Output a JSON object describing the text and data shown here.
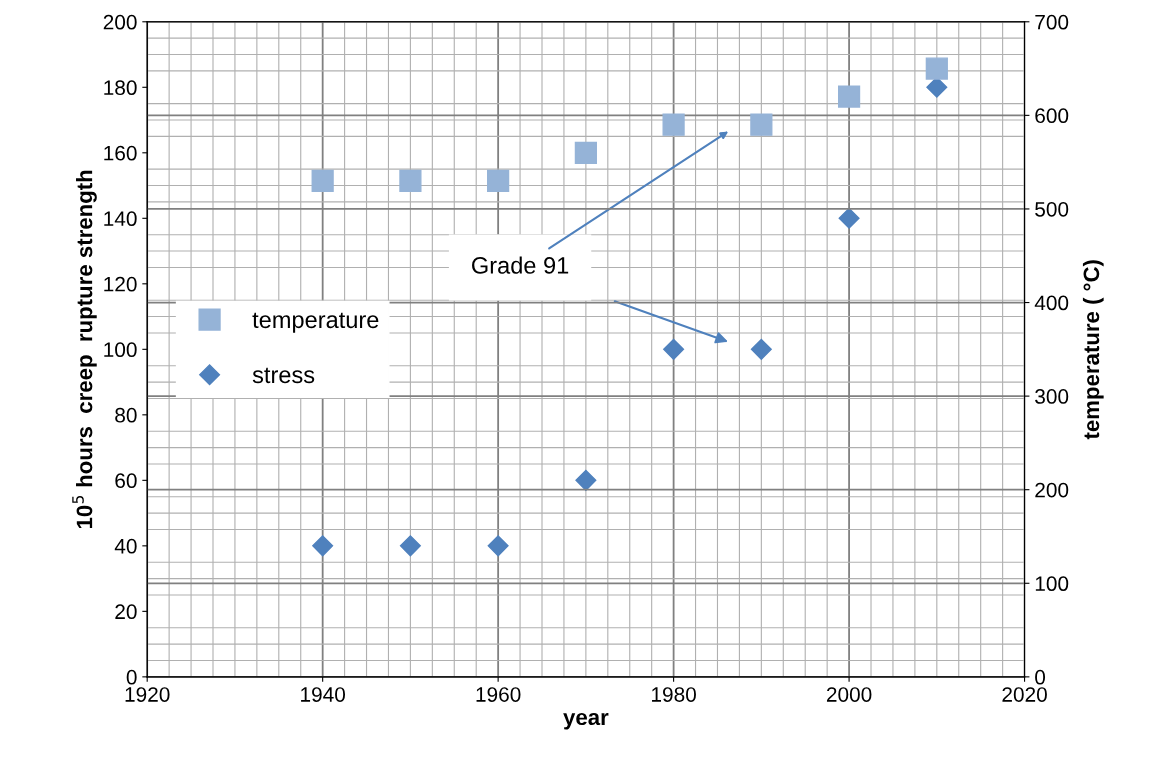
{
  "chart_data": {
    "type": "scatter",
    "xlabel": "year",
    "ylabel": "10$^{5}$ hours  creep  rupture strength",
    "y2label": "temperature ( °C)",
    "xlim": [
      1920,
      2020
    ],
    "xticks": [
      1920,
      1940,
      1960,
      1980,
      2000,
      2020
    ],
    "ylim": [
      0,
      200
    ],
    "yticks": [
      0,
      20,
      40,
      60,
      80,
      100,
      120,
      140,
      160,
      180,
      200
    ],
    "y2lim": [
      0,
      700
    ],
    "y2ticks": [
      0,
      100,
      200,
      300,
      400,
      500,
      600,
      700
    ],
    "grid": true,
    "legend": "center left",
    "series": [
      {
        "name": "temperature",
        "axis": "y2",
        "marker": "square",
        "color": "#95b3d7",
        "x": [
          1940,
          1950,
          1960,
          1970,
          1980,
          1990,
          2000,
          2010
        ],
        "values": [
          530,
          530,
          530,
          560,
          590,
          590,
          620,
          650
        ]
      },
      {
        "name": "stress",
        "marker": "diamond",
        "color": "#4f81bd",
        "x": [
          1940,
          1950,
          1960,
          1970,
          1980,
          1990,
          2000,
          2010
        ],
        "values": [
          40,
          40,
          40,
          60,
          100,
          100,
          140,
          180
        ]
      }
    ],
    "annotations": [
      "Grade 91"
    ]
  }
}
